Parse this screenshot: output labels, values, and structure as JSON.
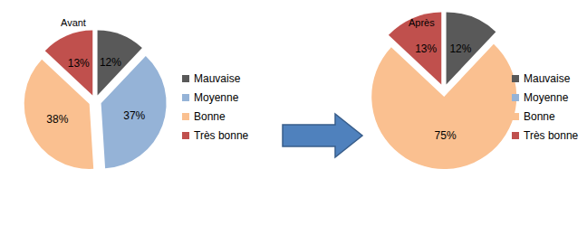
{
  "chart_data": [
    {
      "type": "pie",
      "title": "Avant",
      "categories": [
        "Mauvaise",
        "Moyenne",
        "Bonne",
        "Très bonne"
      ],
      "values": [
        12,
        37,
        38,
        13
      ],
      "value_labels": [
        "12%",
        "37%",
        "38%",
        "13%"
      ],
      "colors": [
        "#595959",
        "#95b3d7",
        "#fac090",
        "#c0504d"
      ],
      "data_labels": true,
      "legend": "right"
    },
    {
      "type": "pie",
      "title": "Après",
      "categories": [
        "Mauvaise",
        "Moyenne",
        "Bonne",
        "Très bonne"
      ],
      "values": [
        12,
        null,
        75,
        13
      ],
      "value_labels": [
        "12%",
        null,
        "75%",
        "13%"
      ],
      "colors": [
        "#595959",
        "#95b3d7",
        "#fac090",
        "#c0504d"
      ],
      "data_labels": true,
      "legend": "right"
    }
  ]
}
